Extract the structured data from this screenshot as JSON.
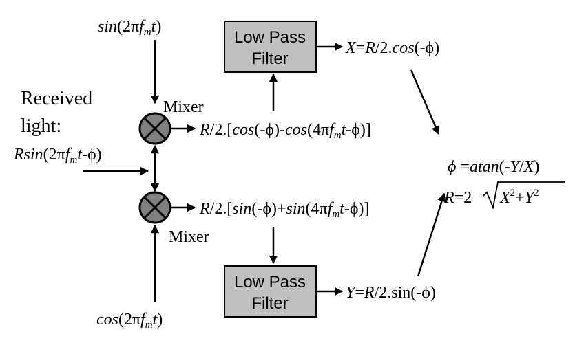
{
  "signals": {
    "sin_ref": {
      "pre": "sin",
      "open": "(2π",
      "f": "f",
      "sub": "m",
      "t": "t",
      "close": ")"
    },
    "cos_ref": {
      "pre": "cos",
      "open": "(2π",
      "f": "f",
      "sub": "m",
      "t": "t",
      "close": ")"
    },
    "received_line1": "Received",
    "received_line2": "light:",
    "received_expr": {
      "pre": "Rsin",
      "open": "(2π",
      "f": "f",
      "sub": "m",
      "t": "t",
      "close": "-ϕ)"
    }
  },
  "mixers": {
    "top_label": "Mixer",
    "bottom_label": "Mixer"
  },
  "mixer_outputs": {
    "top": {
      "r": "R",
      "a": "/2.[",
      "c1": "cos",
      "b": "(-ϕ)-",
      "c2": "cos",
      "c": "(4π",
      "f": "f",
      "sub": "m",
      "t": "t",
      "d": "-ϕ)]"
    },
    "bottom": {
      "r": "R",
      "a": "/2.[",
      "c1": "sin",
      "b": "(-ϕ)+",
      "c2": "sin",
      "c": "(4π",
      "f": "f",
      "sub": "m",
      "t": "t",
      "d": "-ϕ)]"
    }
  },
  "filters": {
    "top": {
      "line1": "Low Pass",
      "line2": "Filter"
    },
    "bottom": {
      "line1": "Low Pass",
      "line2": "Filter"
    }
  },
  "filter_outputs": {
    "x": {
      "v": "X",
      "eq": "=",
      "r": "R",
      "a": "/2.",
      "fn": "cos",
      "b": "(-ϕ)"
    },
    "y": {
      "v": "Y",
      "eq": "=",
      "r": "R",
      "a": "/2.sin(-ϕ)"
    }
  },
  "results": {
    "phi": {
      "phi": "ϕ",
      "eq": " =",
      "fn": "atan",
      "a": "(-",
      "y": "Y",
      "b": "/",
      "x": "X",
      "c": ")"
    },
    "r": {
      "r": "R",
      "eq": "=2",
      "x": "X",
      "sx": "2",
      "plus": "+",
      "y": "Y",
      "sy": "2"
    }
  },
  "colors": {
    "box_fill": "#c0c0c0",
    "mixer_fill": "#808080",
    "line": "#000000"
  }
}
